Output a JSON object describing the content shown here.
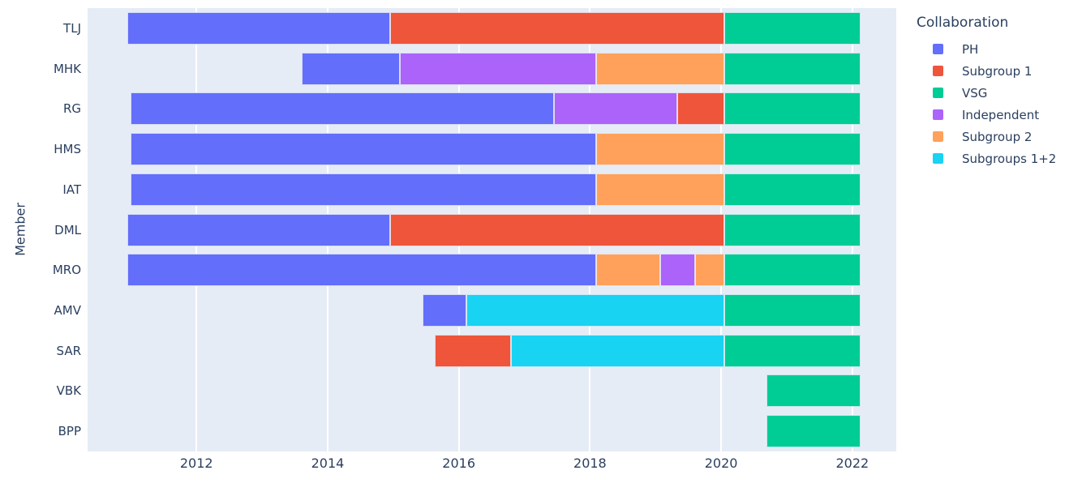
{
  "plot": {
    "background_color": "#e5ecf6",
    "grid_color": "#ffffff",
    "text_color": "#2a3f5f"
  },
  "chart_data": {
    "type": "bar",
    "subtype": "gantt-timeline",
    "title": "",
    "y_axis_title": "Member",
    "x_ticks": [
      2012,
      2014,
      2016,
      2018,
      2020,
      2022
    ],
    "x_range": [
      2010.34,
      2022.67
    ],
    "grid": true,
    "legend_position": "right",
    "legend": {
      "title": "Collaboration",
      "entries": [
        {
          "label": "PH",
          "color": "#636efa"
        },
        {
          "label": "Subgroup 1",
          "color": "#ef553b"
        },
        {
          "label": "VSG",
          "color": "#00cc96"
        },
        {
          "label": "Independent",
          "color": "#ab63fa"
        },
        {
          "label": "Subgroup 2",
          "color": "#ffa15a"
        },
        {
          "label": "Subgroups 1+2",
          "color": "#19d3f3"
        }
      ]
    },
    "colors": {
      "PH": "#636efa",
      "Subgroup 1": "#ef553b",
      "VSG": "#00cc96",
      "Independent": "#ab63fa",
      "Subgroup 2": "#ffa15a",
      "Subgroups 1+2": "#19d3f3"
    },
    "rows": [
      {
        "member": "TLJ",
        "segments": [
          {
            "group": "PH",
            "start": 2010.95,
            "end": 2014.95
          },
          {
            "group": "Subgroup 1",
            "start": 2014.95,
            "end": 2020.05
          },
          {
            "group": "VSG",
            "start": 2020.05,
            "end": 2022.12
          }
        ]
      },
      {
        "member": "MHK",
        "segments": [
          {
            "group": "PH",
            "start": 2013.6,
            "end": 2015.1
          },
          {
            "group": "Independent",
            "start": 2015.1,
            "end": 2018.1
          },
          {
            "group": "Subgroup 2",
            "start": 2018.1,
            "end": 2020.05
          },
          {
            "group": "VSG",
            "start": 2020.05,
            "end": 2022.12
          }
        ]
      },
      {
        "member": "RG",
        "segments": [
          {
            "group": "PH",
            "start": 2011.0,
            "end": 2017.45
          },
          {
            "group": "Independent",
            "start": 2017.45,
            "end": 2019.33
          },
          {
            "group": "Subgroup 1",
            "start": 2019.33,
            "end": 2020.05
          },
          {
            "group": "VSG",
            "start": 2020.05,
            "end": 2022.12
          }
        ]
      },
      {
        "member": "HMS",
        "segments": [
          {
            "group": "PH",
            "start": 2011.0,
            "end": 2018.1
          },
          {
            "group": "Subgroup 2",
            "start": 2018.1,
            "end": 2020.05
          },
          {
            "group": "VSG",
            "start": 2020.05,
            "end": 2022.12
          }
        ]
      },
      {
        "member": "IAT",
        "segments": [
          {
            "group": "PH",
            "start": 2011.0,
            "end": 2018.1
          },
          {
            "group": "Subgroup 2",
            "start": 2018.1,
            "end": 2020.05
          },
          {
            "group": "VSG",
            "start": 2020.05,
            "end": 2022.12
          }
        ]
      },
      {
        "member": "DML",
        "segments": [
          {
            "group": "PH",
            "start": 2010.95,
            "end": 2014.95
          },
          {
            "group": "Subgroup 1",
            "start": 2014.95,
            "end": 2020.05
          },
          {
            "group": "VSG",
            "start": 2020.05,
            "end": 2022.12
          }
        ]
      },
      {
        "member": "MRO",
        "segments": [
          {
            "group": "PH",
            "start": 2010.95,
            "end": 2018.1
          },
          {
            "group": "Subgroup 2",
            "start": 2018.1,
            "end": 2019.07
          },
          {
            "group": "Independent",
            "start": 2019.07,
            "end": 2019.6
          },
          {
            "group": "Subgroup 2",
            "start": 2019.6,
            "end": 2020.05
          },
          {
            "group": "VSG",
            "start": 2020.05,
            "end": 2022.12
          }
        ]
      },
      {
        "member": "AMV",
        "segments": [
          {
            "group": "PH",
            "start": 2015.45,
            "end": 2016.12
          },
          {
            "group": "Subgroups 1+2",
            "start": 2016.12,
            "end": 2020.05
          },
          {
            "group": "VSG",
            "start": 2020.05,
            "end": 2022.12
          }
        ]
      },
      {
        "member": "SAR",
        "segments": [
          {
            "group": "Subgroup 1",
            "start": 2015.63,
            "end": 2016.8
          },
          {
            "group": "Subgroups 1+2",
            "start": 2016.8,
            "end": 2020.05
          },
          {
            "group": "VSG",
            "start": 2020.05,
            "end": 2022.12
          }
        ]
      },
      {
        "member": "VBK",
        "segments": [
          {
            "group": "VSG",
            "start": 2020.69,
            "end": 2022.12
          }
        ]
      },
      {
        "member": "BPP",
        "segments": [
          {
            "group": "VSG",
            "start": 2020.69,
            "end": 2022.12
          }
        ]
      }
    ]
  }
}
